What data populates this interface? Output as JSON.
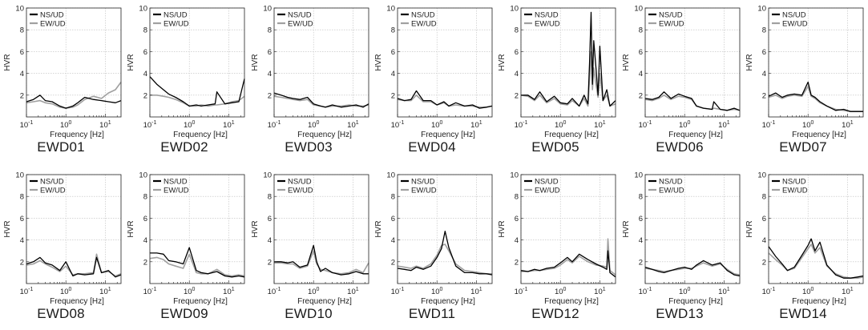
{
  "figure": {
    "y_axis_label": "HVR",
    "x_axis_label": "Frequency [Hz]",
    "y_ticks": [
      "2",
      "4",
      "6",
      "8",
      "10"
    ],
    "x_ticks": [
      {
        "base": "10",
        "exp": "-1"
      },
      {
        "base": "10",
        "exp": "0"
      },
      {
        "base": "10",
        "exp": "1"
      }
    ],
    "legend": [
      {
        "label": "NS/UD",
        "color": "#000000"
      },
      {
        "label": "EW/UD",
        "color": "#a0a0a0"
      }
    ]
  },
  "chart_data": [
    {
      "type": "line",
      "title": "EWD01",
      "xscale": "log",
      "xlim": [
        0.1,
        25
      ],
      "ylim": [
        0,
        10
      ],
      "grid": true,
      "legend_position": "top-left",
      "x": [
        0.1,
        0.15,
        0.22,
        0.3,
        0.45,
        0.7,
        1.0,
        1.5,
        2.0,
        3.0,
        5.0,
        8.0,
        12.0,
        18.0,
        25.0
      ],
      "series": [
        {
          "name": "NS/UD",
          "values": [
            1.4,
            1.6,
            2.0,
            1.5,
            1.4,
            1.0,
            0.8,
            1.0,
            1.3,
            1.8,
            1.6,
            1.5,
            1.4,
            1.3,
            1.5
          ]
        },
        {
          "name": "EW/UD",
          "values": [
            1.3,
            1.4,
            1.5,
            1.3,
            1.2,
            0.9,
            0.8,
            0.9,
            1.1,
            1.6,
            1.9,
            1.7,
            2.2,
            2.5,
            3.2
          ]
        }
      ]
    },
    {
      "type": "line",
      "title": "EWD02",
      "xscale": "log",
      "xlim": [
        0.1,
        25
      ],
      "ylim": [
        0,
        10
      ],
      "grid": true,
      "legend_position": "top-left",
      "x": [
        0.1,
        0.15,
        0.22,
        0.3,
        0.45,
        0.7,
        1.0,
        1.5,
        2.0,
        3.0,
        4.5,
        5.0,
        8.0,
        12.0,
        18.0,
        25.0
      ],
      "series": [
        {
          "name": "NS/UD",
          "values": [
            3.7,
            3.0,
            2.5,
            2.1,
            1.8,
            1.4,
            1.0,
            1.1,
            1.0,
            1.1,
            1.2,
            2.3,
            1.2,
            1.3,
            1.4,
            3.5
          ]
        },
        {
          "name": "EW/UD",
          "values": [
            2.0,
            2.0,
            1.9,
            1.8,
            1.6,
            1.3,
            1.0,
            1.0,
            1.1,
            1.0,
            1.1,
            1.1,
            1.2,
            1.4,
            1.5,
            1.9
          ]
        }
      ]
    },
    {
      "type": "line",
      "title": "EWD03",
      "xscale": "log",
      "xlim": [
        0.1,
        25
      ],
      "ylim": [
        0,
        10
      ],
      "grid": true,
      "legend_position": "top-left",
      "x": [
        0.1,
        0.15,
        0.22,
        0.3,
        0.45,
        0.7,
        1.0,
        1.5,
        2.0,
        3.0,
        5.0,
        8.0,
        12.0,
        18.0,
        25.0
      ],
      "series": [
        {
          "name": "NS/UD",
          "values": [
            2.2,
            2.0,
            1.8,
            1.7,
            1.6,
            1.8,
            1.2,
            1.0,
            0.9,
            1.1,
            0.9,
            1.0,
            1.1,
            0.9,
            1.2
          ]
        },
        {
          "name": "EW/UD",
          "values": [
            1.9,
            1.8,
            1.7,
            1.6,
            1.5,
            1.6,
            1.1,
            1.0,
            0.9,
            1.0,
            1.0,
            1.1,
            1.0,
            1.0,
            1.1
          ]
        }
      ]
    },
    {
      "type": "line",
      "title": "EWD04",
      "xscale": "log",
      "xlim": [
        0.1,
        25
      ],
      "ylim": [
        0,
        10
      ],
      "grid": true,
      "legend_position": "top-left",
      "x": [
        0.1,
        0.15,
        0.22,
        0.3,
        0.45,
        0.7,
        1.0,
        1.5,
        2.0,
        3.0,
        5.0,
        8.0,
        12.0,
        18.0,
        25.0
      ],
      "series": [
        {
          "name": "NS/UD",
          "values": [
            1.7,
            1.5,
            1.6,
            2.4,
            1.5,
            1.5,
            1.1,
            1.4,
            1.0,
            1.3,
            1.0,
            1.1,
            0.8,
            0.9,
            1.0
          ]
        },
        {
          "name": "EW/UD",
          "values": [
            1.6,
            1.5,
            1.5,
            2.0,
            1.4,
            1.4,
            1.1,
            1.3,
            1.0,
            1.1,
            1.0,
            1.0,
            0.9,
            0.9,
            1.0
          ]
        }
      ]
    },
    {
      "type": "line",
      "title": "EWD05",
      "xscale": "log",
      "xlim": [
        0.1,
        25
      ],
      "ylim": [
        0,
        10
      ],
      "grid": true,
      "legend_position": "top-left",
      "x": [
        0.1,
        0.15,
        0.22,
        0.3,
        0.45,
        0.7,
        1.0,
        1.5,
        2.0,
        3.0,
        4.0,
        5.0,
        5.5,
        6.0,
        6.5,
        7.0,
        8.0,
        9.0,
        10.0,
        12.0,
        15.0,
        18.0,
        25.0
      ],
      "series": [
        {
          "name": "NS/UD",
          "values": [
            2.0,
            2.0,
            1.6,
            2.3,
            1.4,
            1.9,
            1.3,
            1.2,
            1.7,
            1.0,
            2.0,
            1.2,
            5.0,
            9.6,
            3.0,
            7.0,
            4.5,
            2.0,
            6.5,
            1.5,
            2.5,
            1.0,
            1.5
          ]
        },
        {
          "name": "EW/UD",
          "values": [
            2.0,
            1.9,
            1.5,
            2.0,
            1.3,
            1.7,
            1.2,
            1.1,
            1.5,
            1.0,
            1.7,
            1.0,
            3.5,
            6.0,
            2.5,
            4.5,
            3.0,
            1.8,
            4.0,
            1.5,
            2.0,
            1.0,
            1.2
          ]
        }
      ]
    },
    {
      "type": "line",
      "title": "EWD06",
      "xscale": "log",
      "xlim": [
        0.1,
        25
      ],
      "ylim": [
        0,
        10
      ],
      "grid": true,
      "legend_position": "top-left",
      "x": [
        0.1,
        0.15,
        0.22,
        0.3,
        0.45,
        0.7,
        1.0,
        1.5,
        2.0,
        3.0,
        5.0,
        5.5,
        8.0,
        12.0,
        18.0,
        25.0
      ],
      "series": [
        {
          "name": "NS/UD",
          "values": [
            1.7,
            1.6,
            1.8,
            2.3,
            1.7,
            2.1,
            1.9,
            1.7,
            1.0,
            0.8,
            0.7,
            1.4,
            0.7,
            0.6,
            0.8,
            0.6
          ]
        },
        {
          "name": "EW/UD",
          "values": [
            1.6,
            1.5,
            1.7,
            2.0,
            1.6,
            1.9,
            1.8,
            1.6,
            1.0,
            0.8,
            0.7,
            0.8,
            0.7,
            0.6,
            0.7,
            0.6
          ]
        }
      ]
    },
    {
      "type": "line",
      "title": "EWD07",
      "xscale": "log",
      "xlim": [
        0.1,
        25
      ],
      "ylim": [
        0,
        10
      ],
      "grid": true,
      "legend_position": "top-left",
      "x": [
        0.1,
        0.15,
        0.22,
        0.3,
        0.45,
        0.7,
        1.0,
        1.2,
        1.5,
        2.0,
        3.0,
        5.0,
        8.0,
        12.0,
        18.0,
        25.0
      ],
      "series": [
        {
          "name": "NS/UD",
          "values": [
            1.9,
            2.2,
            1.8,
            2.0,
            2.1,
            2.0,
            3.2,
            2.0,
            1.8,
            1.4,
            1.0,
            0.6,
            0.7,
            0.5,
            0.5,
            0.5
          ]
        },
        {
          "name": "EW/UD",
          "values": [
            1.8,
            2.0,
            1.7,
            1.9,
            2.0,
            1.9,
            2.8,
            1.9,
            1.7,
            1.3,
            1.0,
            0.7,
            0.6,
            0.5,
            0.5,
            0.5
          ]
        }
      ]
    },
    {
      "type": "line",
      "title": "EWD08",
      "xscale": "log",
      "xlim": [
        0.1,
        25
      ],
      "ylim": [
        0,
        10
      ],
      "grid": true,
      "legend_position": "top-left",
      "x": [
        0.1,
        0.15,
        0.22,
        0.3,
        0.45,
        0.7,
        1.0,
        1.5,
        2.0,
        3.0,
        5.0,
        6.0,
        8.0,
        12.0,
        18.0,
        25.0
      ],
      "series": [
        {
          "name": "NS/UD",
          "values": [
            1.8,
            2.0,
            2.4,
            1.9,
            1.7,
            1.2,
            2.0,
            0.7,
            0.9,
            0.8,
            0.9,
            2.4,
            1.0,
            1.2,
            0.6,
            0.8
          ]
        },
        {
          "name": "EW/UD",
          "values": [
            1.7,
            1.8,
            2.1,
            1.8,
            1.5,
            1.1,
            1.6,
            0.8,
            0.9,
            0.9,
            1.0,
            2.7,
            1.0,
            1.1,
            0.7,
            0.9
          ]
        }
      ]
    },
    {
      "type": "line",
      "title": "EWD09",
      "xscale": "log",
      "xlim": [
        0.1,
        25
      ],
      "ylim": [
        0,
        10
      ],
      "grid": true,
      "legend_position": "top-left",
      "x": [
        0.1,
        0.15,
        0.22,
        0.3,
        0.45,
        0.7,
        1.0,
        1.5,
        2.0,
        3.0,
        5.0,
        8.0,
        12.0,
        18.0,
        25.0
      ],
      "series": [
        {
          "name": "NS/UD",
          "values": [
            2.8,
            2.8,
            2.7,
            2.1,
            2.0,
            1.8,
            3.3,
            1.2,
            1.0,
            0.9,
            1.1,
            0.7,
            0.6,
            0.7,
            0.6
          ]
        },
        {
          "name": "EW/UD",
          "values": [
            2.3,
            2.4,
            2.2,
            1.8,
            1.6,
            1.4,
            2.7,
            1.0,
            0.9,
            0.9,
            1.3,
            0.8,
            0.7,
            0.8,
            0.7
          ]
        }
      ]
    },
    {
      "type": "line",
      "title": "EWD10",
      "xscale": "log",
      "xlim": [
        0.1,
        25
      ],
      "ylim": [
        0,
        10
      ],
      "grid": true,
      "legend_position": "top-left",
      "x": [
        0.1,
        0.15,
        0.22,
        0.3,
        0.45,
        0.7,
        1.0,
        1.2,
        1.5,
        2.0,
        3.0,
        5.0,
        8.0,
        12.0,
        18.0,
        25.0
      ],
      "series": [
        {
          "name": "NS/UD",
          "values": [
            2.0,
            2.0,
            1.9,
            2.0,
            1.5,
            1.7,
            3.5,
            2.0,
            1.1,
            1.4,
            1.0,
            0.8,
            0.9,
            1.1,
            0.9,
            0.9
          ]
        },
        {
          "name": "EW/UD",
          "values": [
            1.9,
            1.9,
            1.8,
            1.8,
            1.4,
            1.6,
            3.0,
            1.8,
            1.3,
            1.2,
            1.0,
            0.9,
            1.0,
            1.3,
            1.0,
            1.9
          ]
        }
      ]
    },
    {
      "type": "line",
      "title": "EWD11",
      "xscale": "log",
      "xlim": [
        0.1,
        25
      ],
      "ylim": [
        0,
        10
      ],
      "grid": true,
      "legend_position": "top-left",
      "x": [
        0.1,
        0.15,
        0.22,
        0.3,
        0.45,
        0.7,
        1.0,
        1.3,
        1.6,
        2.0,
        3.0,
        5.0,
        8.0,
        12.0,
        18.0,
        25.0
      ],
      "series": [
        {
          "name": "NS/UD",
          "values": [
            1.4,
            1.3,
            1.2,
            1.5,
            1.3,
            1.6,
            2.4,
            3.2,
            4.8,
            3.3,
            1.6,
            1.0,
            1.0,
            0.9,
            0.9,
            0.8
          ]
        },
        {
          "name": "EW/UD",
          "values": [
            1.6,
            1.5,
            1.4,
            1.6,
            1.4,
            1.8,
            2.6,
            3.5,
            3.6,
            3.0,
            1.8,
            1.2,
            1.1,
            1.0,
            0.9,
            0.9
          ]
        }
      ]
    },
    {
      "type": "line",
      "title": "EWD12",
      "xscale": "log",
      "xlim": [
        0.1,
        25
      ],
      "ylim": [
        0,
        10
      ],
      "grid": true,
      "legend_position": "top-left",
      "x": [
        0.1,
        0.15,
        0.22,
        0.3,
        0.45,
        0.7,
        1.0,
        1.5,
        2.0,
        3.0,
        5.0,
        8.0,
        12.0,
        15.0,
        16.0,
        18.0,
        25.0
      ],
      "series": [
        {
          "name": "NS/UD",
          "values": [
            1.2,
            1.1,
            1.3,
            1.2,
            1.4,
            1.5,
            1.9,
            2.4,
            2.0,
            2.7,
            2.2,
            1.8,
            1.5,
            1.3,
            3.0,
            1.0,
            0.6
          ]
        },
        {
          "name": "EW/UD",
          "values": [
            1.1,
            1.1,
            1.2,
            1.2,
            1.3,
            1.4,
            1.7,
            2.2,
            1.9,
            2.5,
            2.0,
            1.7,
            1.6,
            1.5,
            4.1,
            1.2,
            0.8
          ]
        }
      ]
    },
    {
      "type": "line",
      "title": "EWD13",
      "xscale": "log",
      "xlim": [
        0.1,
        25
      ],
      "ylim": [
        0,
        10
      ],
      "grid": true,
      "legend_position": "top-left",
      "x": [
        0.1,
        0.15,
        0.22,
        0.3,
        0.45,
        0.7,
        1.0,
        1.5,
        2.0,
        3.0,
        5.0,
        8.0,
        12.0,
        18.0,
        25.0
      ],
      "series": [
        {
          "name": "NS/UD",
          "values": [
            1.5,
            1.3,
            1.1,
            1.0,
            1.2,
            1.4,
            1.5,
            1.3,
            1.7,
            2.1,
            1.7,
            1.9,
            1.2,
            0.8,
            0.7
          ]
        },
        {
          "name": "EW/UD",
          "values": [
            1.4,
            1.3,
            1.2,
            1.1,
            1.2,
            1.3,
            1.4,
            1.4,
            1.6,
            1.9,
            1.6,
            1.8,
            1.3,
            0.9,
            0.8
          ]
        }
      ]
    },
    {
      "type": "line",
      "title": "EWD14",
      "xscale": "log",
      "xlim": [
        0.1,
        25
      ],
      "ylim": [
        0,
        10
      ],
      "grid": true,
      "legend_position": "top-left",
      "x": [
        0.1,
        0.15,
        0.22,
        0.3,
        0.45,
        0.7,
        1.0,
        1.2,
        1.5,
        2.0,
        3.0,
        5.0,
        8.0,
        12.0,
        18.0,
        25.0
      ],
      "series": [
        {
          "name": "NS/UD",
          "values": [
            3.4,
            2.5,
            1.8,
            1.2,
            1.5,
            2.6,
            3.5,
            4.1,
            3.0,
            3.8,
            1.7,
            0.8,
            0.5,
            0.5,
            0.6,
            0.7
          ]
        },
        {
          "name": "EW/UD",
          "values": [
            2.8,
            2.2,
            1.7,
            1.2,
            1.4,
            2.4,
            3.2,
            3.6,
            2.8,
            3.3,
            1.6,
            0.9,
            0.6,
            0.5,
            0.5,
            0.6
          ]
        }
      ]
    }
  ]
}
